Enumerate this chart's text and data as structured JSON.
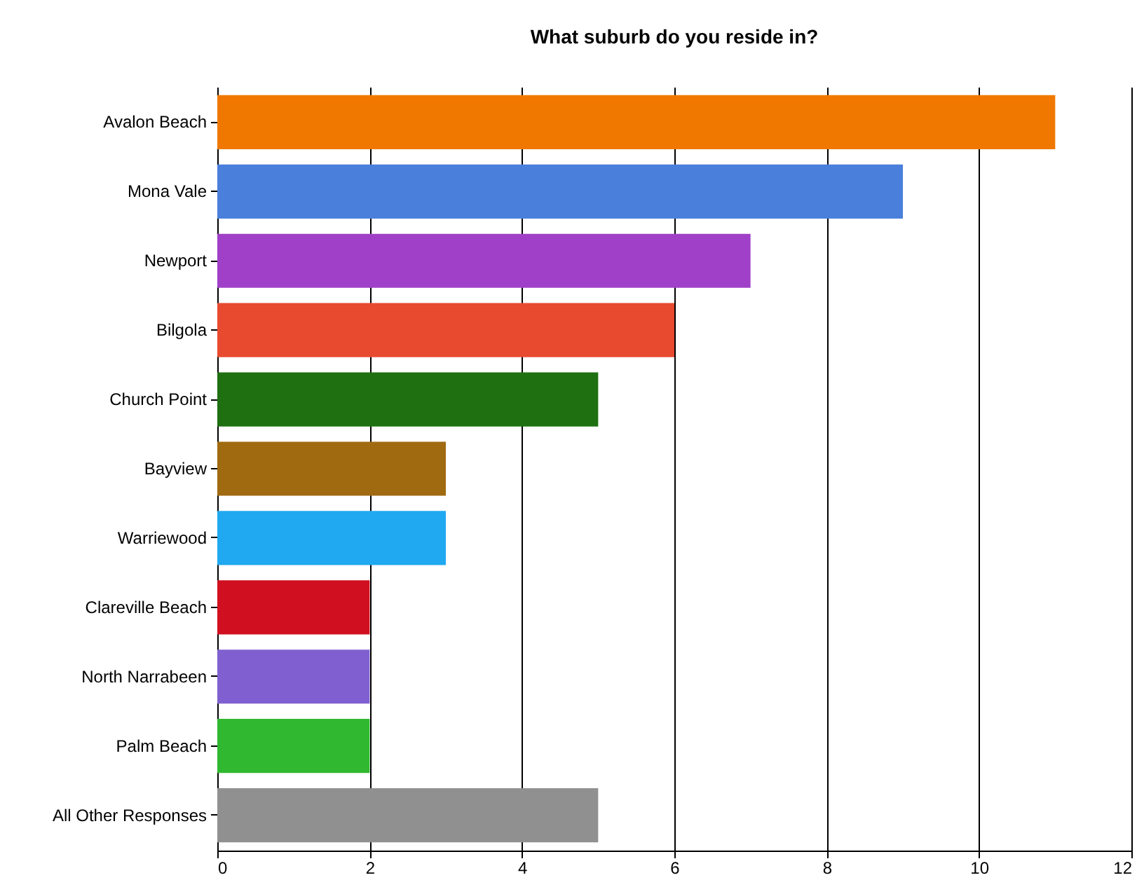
{
  "chart_data": {
    "type": "bar",
    "title": "What suburb do you reside in?",
    "orientation": "horizontal",
    "categories": [
      "Avalon Beach",
      "Mona Vale",
      "Newport",
      "Bilgola",
      "Church Point",
      "Bayview",
      "Warriewood",
      "Clareville Beach",
      "North Narrabeen",
      "Palm Beach",
      "All Other Responses"
    ],
    "values": [
      11,
      9,
      7,
      6,
      5,
      3,
      3,
      2,
      2,
      2,
      5
    ],
    "colors": [
      "#f07800",
      "#4a7fdc",
      "#a040c8",
      "#e84a30",
      "#1e7010",
      "#a06a10",
      "#20a8f0",
      "#d01020",
      "#8060d0",
      "#30b830",
      "#909090"
    ],
    "xlim": [
      0,
      12
    ],
    "xticks": [
      0,
      2,
      4,
      6,
      8,
      10,
      12
    ],
    "grid": "x"
  }
}
